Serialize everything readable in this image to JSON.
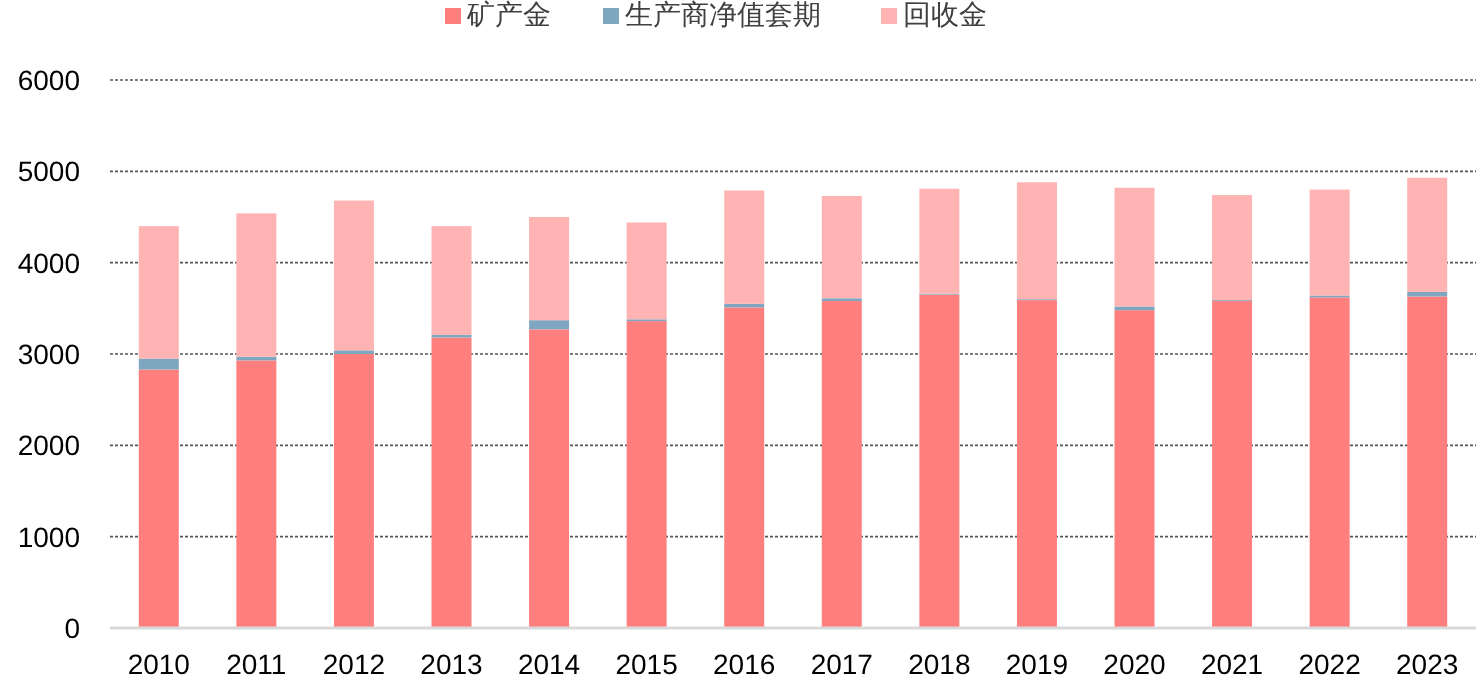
{
  "chart_data": {
    "type": "bar",
    "stacked": true,
    "grid": "y",
    "legend": "top",
    "categories": [
      "2010",
      "2011",
      "2012",
      "2013",
      "2014",
      "2015",
      "2016",
      "2017",
      "2018",
      "2019",
      "2020",
      "2021",
      "2022",
      "2023"
    ],
    "series": [
      {
        "name": "矿产金",
        "color": "#ff7f7f",
        "values": [
          2830,
          2930,
          3000,
          3180,
          3270,
          3360,
          3510,
          3580,
          3650,
          3590,
          3480,
          3580,
          3620,
          3630
        ]
      },
      {
        "name": "生产商净值套期",
        "color": "#7fa6c1",
        "values": [
          120,
          40,
          40,
          30,
          100,
          20,
          40,
          30,
          10,
          10,
          40,
          10,
          20,
          50
        ]
      },
      {
        "name": "回收金",
        "color": "#ffb3b3",
        "values": [
          1450,
          1570,
          1640,
          1190,
          1130,
          1060,
          1240,
          1120,
          1150,
          1280,
          1300,
          1150,
          1160,
          1250
        ]
      }
    ],
    "ylim": [
      0,
      6000
    ],
    "yticks": [
      0,
      1000,
      2000,
      3000,
      4000,
      5000,
      6000
    ]
  }
}
